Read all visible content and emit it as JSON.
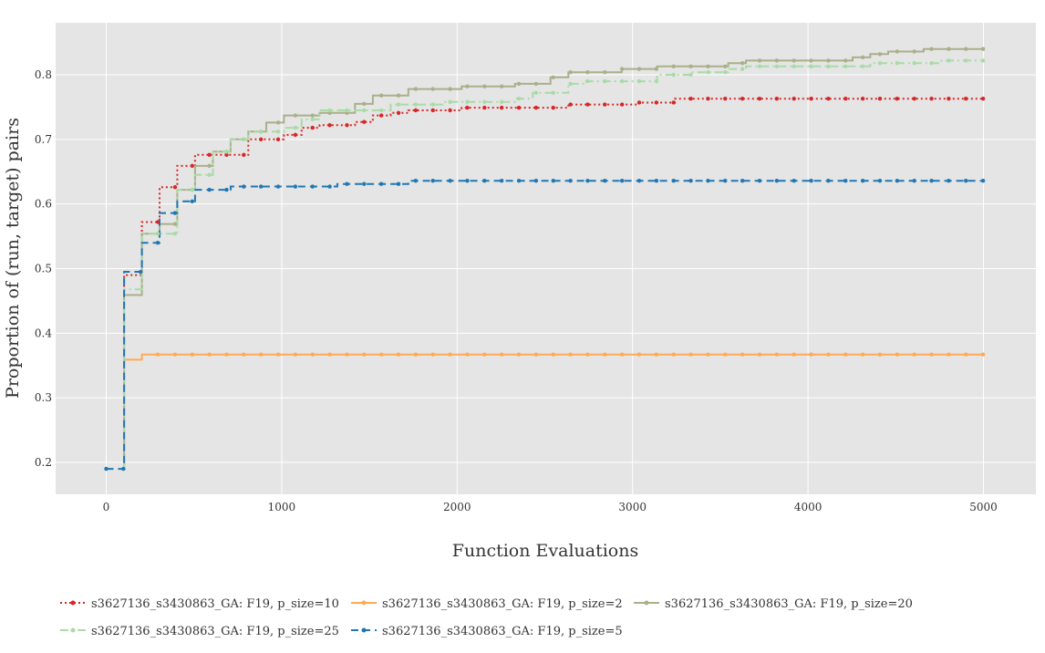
{
  "chart_data": {
    "type": "line",
    "line_shape": "step",
    "xlabel": "Function Evaluations",
    "ylabel": "Proportion of (run, target) pairs",
    "xlim": [
      -290,
      5300
    ],
    "ylim": [
      0.15,
      0.83
    ],
    "x_ticks": [
      0,
      1000,
      2000,
      3000,
      4000,
      5000
    ],
    "x_tick_labels": [
      "0",
      "1000",
      "2000",
      "3000",
      "4000",
      "5000"
    ],
    "y_ticks": [
      0.2,
      0.3,
      0.4,
      0.5,
      0.6,
      0.7,
      0.8
    ],
    "y_tick_labels": [
      "0.2",
      "0.3",
      "0.4",
      "0.5",
      "0.6",
      "0.7",
      "0.8"
    ],
    "grid": true,
    "legend_position": "bottom",
    "background": "#e5e5e5",
    "series": [
      {
        "name": "s3627136_s3430863_GA: F19, p_size=10",
        "color": "#d62728",
        "dash": "dot",
        "points": [
          [
            100,
            0.19
          ],
          [
            102,
            0.49
          ],
          [
            203,
            0.572
          ],
          [
            304,
            0.626
          ],
          [
            405,
            0.659
          ],
          [
            506,
            0.676
          ],
          [
            810,
            0.7
          ],
          [
            1013,
            0.707
          ],
          [
            1114,
            0.718
          ],
          [
            1216,
            0.722
          ],
          [
            1418,
            0.727
          ],
          [
            1520,
            0.737
          ],
          [
            1621,
            0.741
          ],
          [
            1722,
            0.745
          ],
          [
            2026,
            0.749
          ],
          [
            2634,
            0.754
          ],
          [
            3038,
            0.757
          ],
          [
            3241,
            0.763
          ],
          [
            5000,
            0.763
          ]
        ]
      },
      {
        "name": "s3627136_s3430863_GA: F19, p_size=2",
        "color": "#ffaa55",
        "dash": "solid",
        "points": [
          [
            100,
            0.19
          ],
          [
            102,
            0.359
          ],
          [
            203,
            0.367
          ],
          [
            5000,
            0.367
          ]
        ]
      },
      {
        "name": "s3627136_s3430863_GA: F19, p_size=20",
        "color": "#a9b08a",
        "dash": "solid",
        "points": [
          [
            100,
            0.19
          ],
          [
            102,
            0.459
          ],
          [
            203,
            0.554
          ],
          [
            304,
            0.569
          ],
          [
            405,
            0.622
          ],
          [
            506,
            0.659
          ],
          [
            608,
            0.681
          ],
          [
            709,
            0.7
          ],
          [
            810,
            0.712
          ],
          [
            912,
            0.726
          ],
          [
            1013,
            0.737
          ],
          [
            1216,
            0.741
          ],
          [
            1418,
            0.755
          ],
          [
            1520,
            0.768
          ],
          [
            1722,
            0.778
          ],
          [
            2026,
            0.782
          ],
          [
            2330,
            0.786
          ],
          [
            2532,
            0.796
          ],
          [
            2634,
            0.804
          ],
          [
            2938,
            0.809
          ],
          [
            3140,
            0.813
          ],
          [
            3545,
            0.818
          ],
          [
            3646,
            0.822
          ],
          [
            4254,
            0.827
          ],
          [
            4355,
            0.832
          ],
          [
            4457,
            0.836
          ],
          [
            4659,
            0.84
          ],
          [
            5000,
            0.84
          ]
        ]
      },
      {
        "name": "s3627136_s3430863_GA: F19, p_size=25",
        "color": "#a8dba8",
        "dash": "dashdot",
        "points": [
          [
            100,
            0.19
          ],
          [
            102,
            0.468
          ],
          [
            203,
            0.554
          ],
          [
            405,
            0.622
          ],
          [
            506,
            0.645
          ],
          [
            608,
            0.681
          ],
          [
            709,
            0.7
          ],
          [
            810,
            0.712
          ],
          [
            1013,
            0.718
          ],
          [
            1114,
            0.731
          ],
          [
            1216,
            0.745
          ],
          [
            1621,
            0.754
          ],
          [
            1925,
            0.758
          ],
          [
            2330,
            0.763
          ],
          [
            2431,
            0.772
          ],
          [
            2634,
            0.786
          ],
          [
            2735,
            0.79
          ],
          [
            3140,
            0.8
          ],
          [
            3343,
            0.804
          ],
          [
            3545,
            0.809
          ],
          [
            3646,
            0.813
          ],
          [
            4355,
            0.818
          ],
          [
            4761,
            0.822
          ],
          [
            5000,
            0.822
          ]
        ]
      },
      {
        "name": "s3627136_s3430863_GA: F19, p_size=5",
        "color": "#1f77b4",
        "dash": "dash",
        "points": [
          [
            0,
            0.19
          ],
          [
            100,
            0.19
          ],
          [
            102,
            0.495
          ],
          [
            203,
            0.54
          ],
          [
            304,
            0.586
          ],
          [
            405,
            0.604
          ],
          [
            506,
            0.622
          ],
          [
            709,
            0.627
          ],
          [
            1317,
            0.631
          ],
          [
            1722,
            0.636
          ],
          [
            5000,
            0.636
          ]
        ]
      }
    ]
  }
}
